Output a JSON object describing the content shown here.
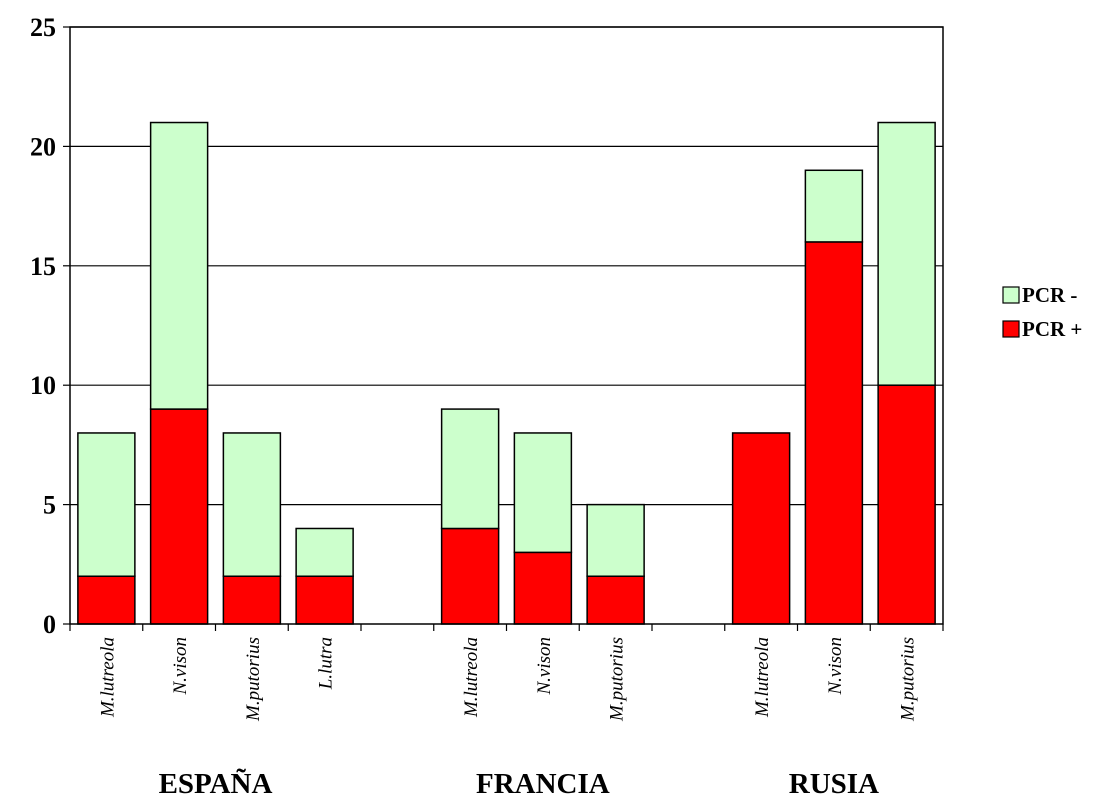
{
  "chart_data": {
    "type": "bar",
    "stacked": true,
    "categories": [
      "M.lutreola",
      "N.vison",
      "M.putorius",
      "L.lutra",
      "",
      "M.lutreola",
      "N.vison",
      "M.putorius",
      "",
      "M.lutreola",
      "N.vison",
      "M.putorius"
    ],
    "groups": [
      {
        "label": "ESPAÑA",
        "start": 0,
        "end": 3
      },
      {
        "label": "FRANCIA",
        "start": 5,
        "end": 7
      },
      {
        "label": "RUSIA",
        "start": 9,
        "end": 11
      }
    ],
    "series": [
      {
        "name": "PCR +",
        "color": "#ff0000",
        "values": [
          2,
          9,
          2,
          2,
          null,
          4,
          3,
          2,
          null,
          8,
          16,
          10
        ]
      },
      {
        "name": "PCR -",
        "color": "#ccffcc",
        "values": [
          6,
          12,
          6,
          2,
          null,
          5,
          5,
          3,
          null,
          0,
          3,
          11
        ]
      }
    ],
    "ylim": [
      0,
      25
    ],
    "yticks": [
      0,
      5,
      10,
      15,
      20,
      25
    ],
    "grid": true,
    "legend": "right",
    "legend_order": [
      "PCR -",
      "PCR +"
    ]
  }
}
